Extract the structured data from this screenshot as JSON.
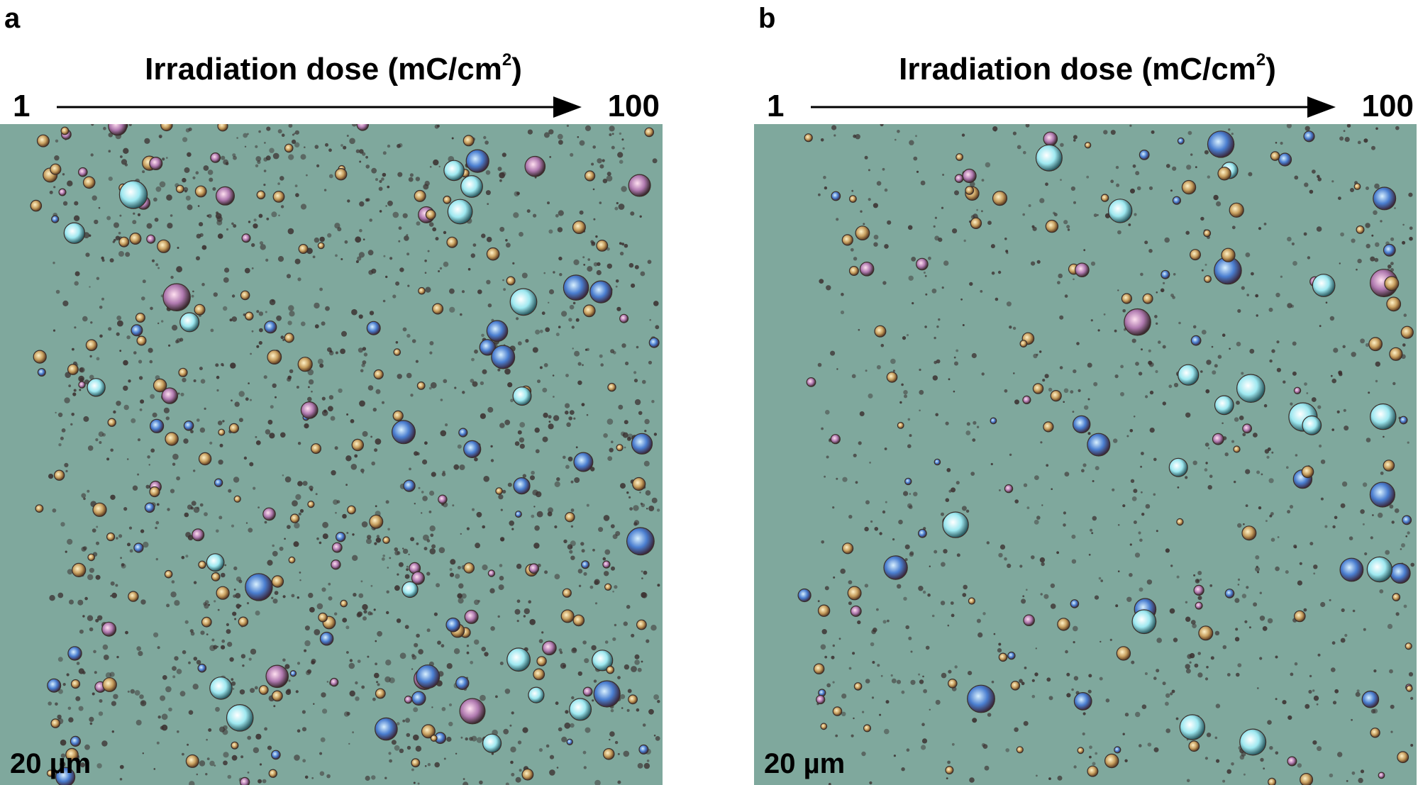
{
  "panels": [
    {
      "letter": "a",
      "axis_title": "Irradiation dose (mC/cm",
      "axis_title_sup": "2",
      "axis_title_end": ")",
      "dose_min": "1",
      "dose_max": "100",
      "scale_bar": "20 µm",
      "image": "optical micrograph of droplet array on grey-green substrate"
    },
    {
      "letter": "b",
      "axis_title": "Irradiation dose (mC/cm",
      "axis_title_sup": "2",
      "axis_title_end": ")",
      "dose_min": "1",
      "dose_max": "100",
      "scale_bar": "20 µm",
      "image": "optical micrograph of sparser droplet array on grey-green substrate"
    }
  ],
  "colors": {
    "substrate": "#7fa89d",
    "dark_dot": "#3b3030",
    "gold_droplet": "#c8a060",
    "blue_droplet": "#4a7ed0",
    "cyan_droplet": "#9ee8f0"
  }
}
